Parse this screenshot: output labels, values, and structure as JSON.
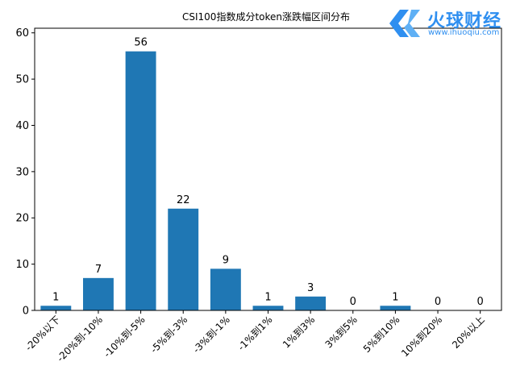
{
  "chart_data": {
    "type": "bar",
    "title": "CSI100指数成分token涨跌幅区间分布",
    "categories": [
      "-20%以下",
      "-20%到-10%",
      "-10%到-5%",
      "-5%到-3%",
      "-3%到-1%",
      "-1%到1%",
      "1%到3%",
      "3%到5%",
      "5%到10%",
      "10%到20%",
      "20%以上"
    ],
    "values": [
      1,
      7,
      56,
      22,
      9,
      1,
      3,
      0,
      1,
      0,
      0
    ],
    "data_labels": [
      "1",
      "7",
      "56",
      "22",
      "9",
      "1",
      "3",
      "0",
      "1",
      "0",
      "0"
    ],
    "ylim": [
      0,
      61
    ],
    "yticks": [
      0,
      10,
      20,
      30,
      40,
      50,
      60
    ],
    "xlabel": "",
    "ylabel": "",
    "grid": false,
    "bar_color": "#1f77b4",
    "xtick_rotation": 45
  },
  "watermark": {
    "name": "火球财经",
    "url": "www.ihuoqiu.com",
    "color": "#2f8ff0"
  }
}
